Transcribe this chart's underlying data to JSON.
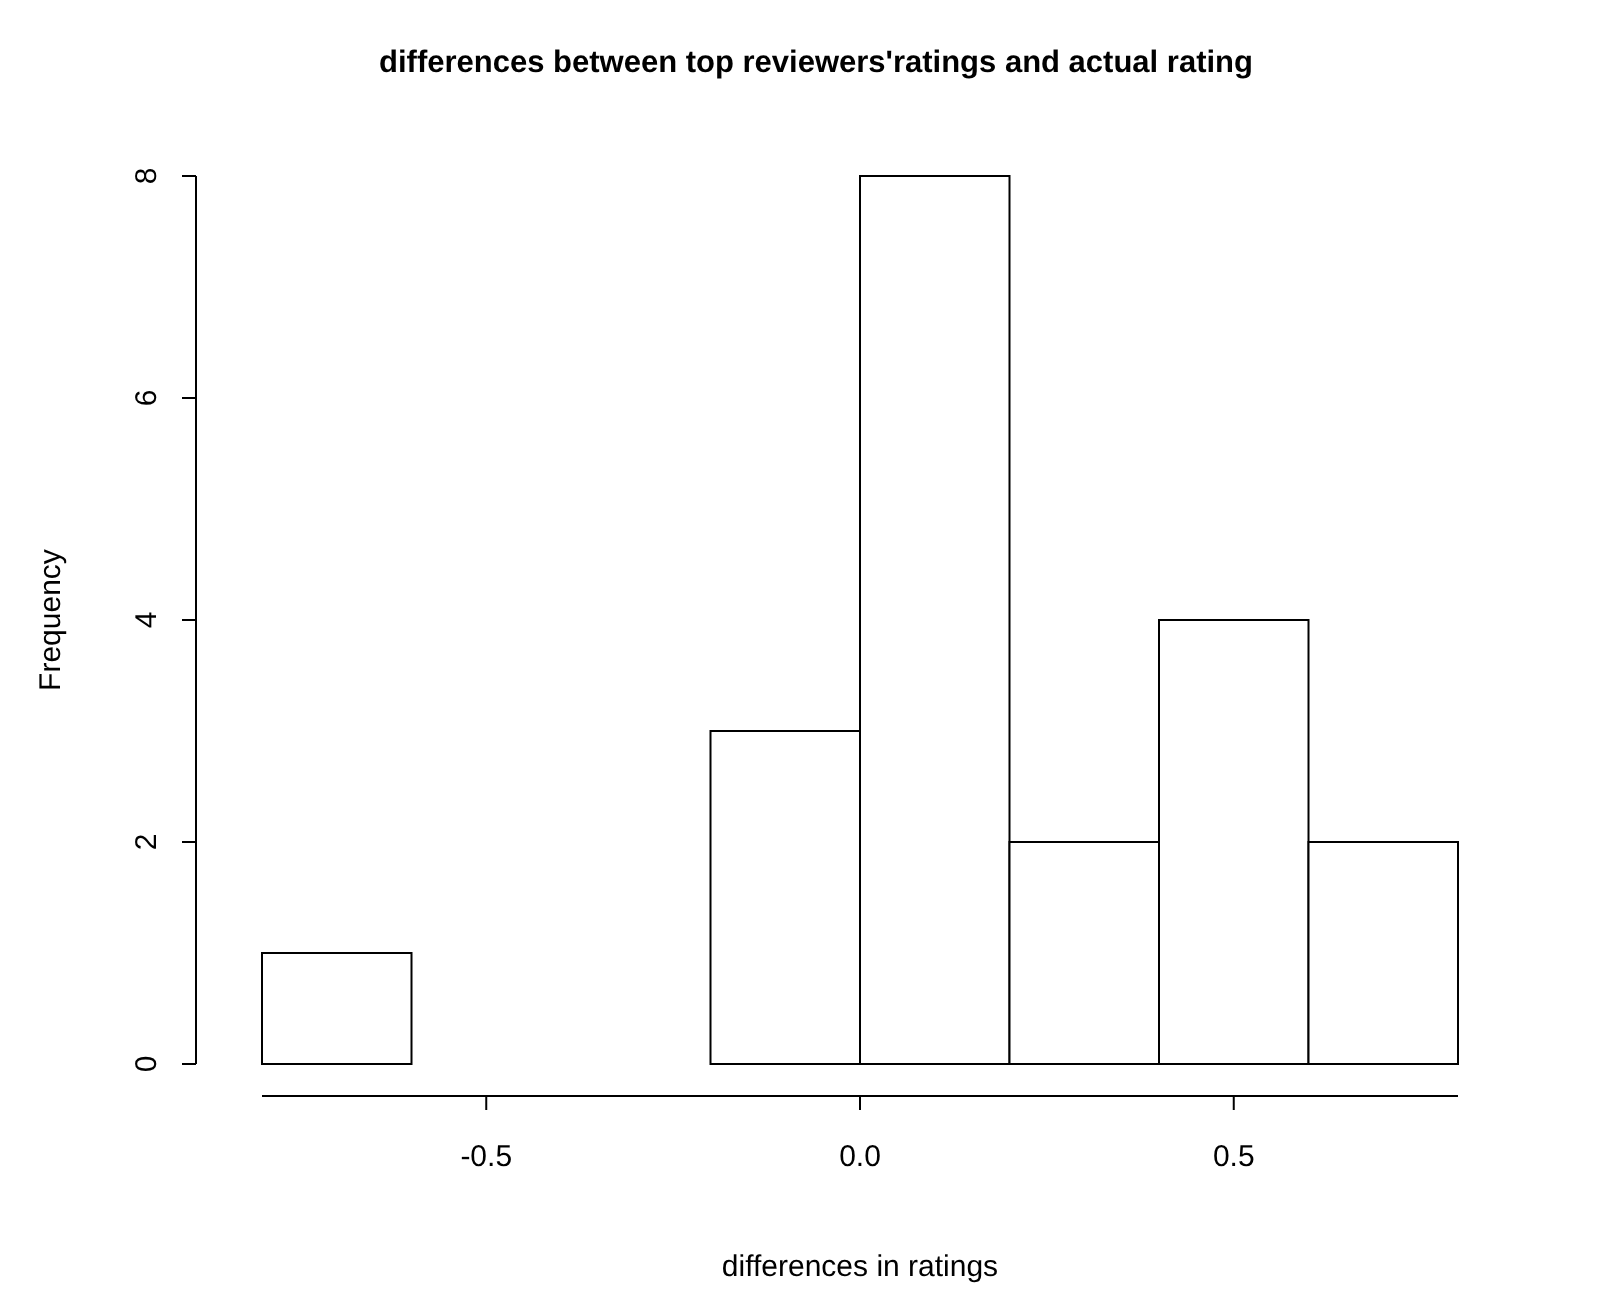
{
  "chart_data": {
    "type": "histogram",
    "title": "differences between top reviewers'ratings and actual rating",
    "xlabel": "differences in ratings",
    "ylabel": "Frequency",
    "bins": [
      -0.8,
      -0.6,
      -0.4,
      -0.2,
      0.0,
      0.2,
      0.4,
      0.6,
      0.8
    ],
    "values": [
      1,
      0,
      0,
      3,
      8,
      2,
      4,
      2
    ],
    "color": "#ffffff",
    "xlim": [
      -0.8,
      0.8
    ],
    "xticks": [
      -0.5,
      {
        "value": 0,
        "label": "0.0"
      },
      0.5
    ],
    "ylim": [
      0,
      8
    ],
    "yticks": [
      0,
      2,
      4,
      6,
      8
    ],
    "grid": false
  }
}
